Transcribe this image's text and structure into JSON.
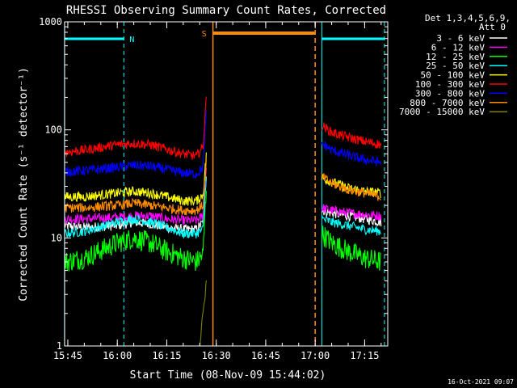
{
  "chart_data": {
    "type": "line",
    "title": "RHESSI Observing Summary Count Rates, Corrected",
    "xlabel": "Start Time (08-Nov-09 15:44:02)",
    "ylabel": "Corrected Count Rate (s⁻¹ detector⁻¹)",
    "y_scale": "log",
    "ylim": [
      1,
      1000
    ],
    "y_ticks": [
      1,
      10,
      100,
      1000
    ],
    "y_tick_labels": [
      "1",
      "10",
      "100",
      "1000"
    ],
    "xlim": [
      "15:44:02",
      "17:22:00"
    ],
    "x_ticks": [
      "15:45",
      "16:00",
      "16:15",
      "16:30",
      "16:45",
      "17:00",
      "17:15"
    ],
    "grid": false,
    "legend_position": "top-right",
    "legend_header": [
      "Det 1,3,4,5,6,9,",
      "Att 0"
    ],
    "timestamp": "16-Oct-2021 09:07",
    "night_label": "N",
    "saa_label": "S",
    "colors": {
      "night": "#00ffff",
      "saa": "#ff8c00"
    },
    "series": [
      {
        "name": "3 - 6 keV",
        "color": "#ffffff",
        "segments": [
          {
            "x": [
              "15:44",
              "15:50",
              "16:00",
              "16:05",
              "16:10",
              "16:15",
              "16:20",
              "16:24",
              "16:26",
              "16:27"
            ],
            "y": [
              13,
              12.5,
              13,
              14,
              13.5,
              12.5,
              12,
              12,
              14,
              40
            ]
          },
          {
            "x": [
              "17:02",
              "17:05",
              "17:10",
              "17:15",
              "17:20"
            ],
            "y": [
              18,
              17,
              16,
              15,
              14
            ]
          }
        ]
      },
      {
        "name": "6 - 12 keV",
        "color": "#ff00ff",
        "segments": [
          {
            "x": [
              "15:44",
              "15:50",
              "16:00",
              "16:05",
              "16:10",
              "16:15",
              "16:20",
              "16:24",
              "16:26",
              "16:27"
            ],
            "y": [
              15,
              15,
              15.5,
              16,
              16,
              15,
              14.5,
              14.5,
              16,
              45
            ]
          },
          {
            "x": [
              "17:02",
              "17:05",
              "17:10",
              "17:15",
              "17:20"
            ],
            "y": [
              19,
              18,
              17,
              16.5,
              16
            ]
          }
        ]
      },
      {
        "name": "12 - 25 keV",
        "color": "#00ff00",
        "segments": [
          {
            "x": [
              "15:44",
              "15:50",
              "16:00",
              "16:05",
              "16:10",
              "16:15",
              "16:20",
              "16:24",
              "16:26",
              "16:27"
            ],
            "y": [
              6,
              6.5,
              9,
              10,
              9,
              7.5,
              6.5,
              6,
              7,
              30
            ]
          },
          {
            "x": [
              "17:02",
              "17:05",
              "17:10",
              "17:15",
              "17:20"
            ],
            "y": [
              11,
              9,
              7.5,
              6.5,
              6
            ]
          }
        ]
      },
      {
        "name": "25 - 50 keV",
        "color": "#00ffff",
        "segments": [
          {
            "x": [
              "15:44",
              "15:50",
              "16:00",
              "16:05",
              "16:10",
              "16:15",
              "16:20",
              "16:24",
              "16:26",
              "16:27"
            ],
            "y": [
              11,
              11.5,
              14,
              15,
              14,
              12.5,
              11,
              11,
              12,
              40
            ]
          },
          {
            "x": [
              "17:02",
              "17:05",
              "17:10",
              "17:15",
              "17:20"
            ],
            "y": [
              15,
              14,
              13,
              12,
              11.5
            ]
          }
        ]
      },
      {
        "name": "50 - 100 keV",
        "color": "#ffff00",
        "segments": [
          {
            "x": [
              "15:44",
              "15:50",
              "16:00",
              "16:05",
              "16:10",
              "16:15",
              "16:20",
              "16:24",
              "16:26",
              "16:27"
            ],
            "y": [
              24,
              24,
              26,
              27,
              26,
              24,
              22,
              22,
              25,
              60
            ]
          },
          {
            "x": [
              "17:02",
              "17:05",
              "17:10",
              "17:15",
              "17:20"
            ],
            "y": [
              36,
              33,
              29,
              27,
              26
            ]
          }
        ]
      },
      {
        "name": "100 - 300 keV",
        "color": "#ff0000",
        "segments": [
          {
            "x": [
              "15:44",
              "15:50",
              "16:00",
              "16:05",
              "16:10",
              "16:15",
              "16:20",
              "16:24",
              "16:26",
              "16:27"
            ],
            "y": [
              62,
              65,
              73,
              75,
              73,
              66,
              60,
              57,
              70,
              200
            ]
          },
          {
            "x": [
              "17:02",
              "17:05",
              "17:10",
              "17:15",
              "17:20"
            ],
            "y": [
              110,
              95,
              85,
              78,
              73
            ]
          }
        ]
      },
      {
        "name": "300 - 800 keV",
        "color": "#0000ff",
        "segments": [
          {
            "x": [
              "15:44",
              "15:50",
              "16:00",
              "16:05",
              "16:10",
              "16:15",
              "16:20",
              "16:24",
              "16:26",
              "16:27"
            ],
            "y": [
              41,
              42,
              45,
              47,
              46,
              43,
              40,
              39,
              45,
              140
            ]
          },
          {
            "x": [
              "17:02",
              "17:05",
              "17:10",
              "17:15",
              "17:20"
            ],
            "y": [
              75,
              65,
              58,
              53,
              50
            ]
          }
        ]
      },
      {
        "name": "800 - 7000 keV",
        "color": "#ff8c00",
        "segments": [
          {
            "x": [
              "15:44",
              "15:50",
              "16:00",
              "16:05",
              "16:10",
              "16:15",
              "16:20",
              "16:24",
              "16:26",
              "16:27"
            ],
            "y": [
              19,
              19,
              20,
              21,
              20,
              19,
              18,
              18,
              20,
              50
            ]
          },
          {
            "x": [
              "17:02",
              "17:05",
              "17:10",
              "17:15",
              "17:20"
            ],
            "y": [
              37,
              32,
              28,
              26,
              24
            ]
          }
        ]
      },
      {
        "name": "7000 - 15000 keV",
        "color": "#808000",
        "segments": [
          {
            "x": [
              "16:25",
              "16:26",
              "16:27",
              "16:27"
            ],
            "y": [
              1,
              2,
              4,
              5
            ]
          }
        ]
      }
    ],
    "night_intervals": [
      {
        "start": "15:44",
        "end": "16:02"
      },
      {
        "start": "17:02",
        "end": "17:21"
      }
    ],
    "saa_intervals": [
      {
        "start": "16:29",
        "end": "17:00"
      }
    ],
    "night_vertical_markers": [
      "15:44",
      "16:02",
      "17:02",
      "17:21"
    ],
    "saa_vertical_markers": [
      "16:29",
      "17:00"
    ]
  }
}
